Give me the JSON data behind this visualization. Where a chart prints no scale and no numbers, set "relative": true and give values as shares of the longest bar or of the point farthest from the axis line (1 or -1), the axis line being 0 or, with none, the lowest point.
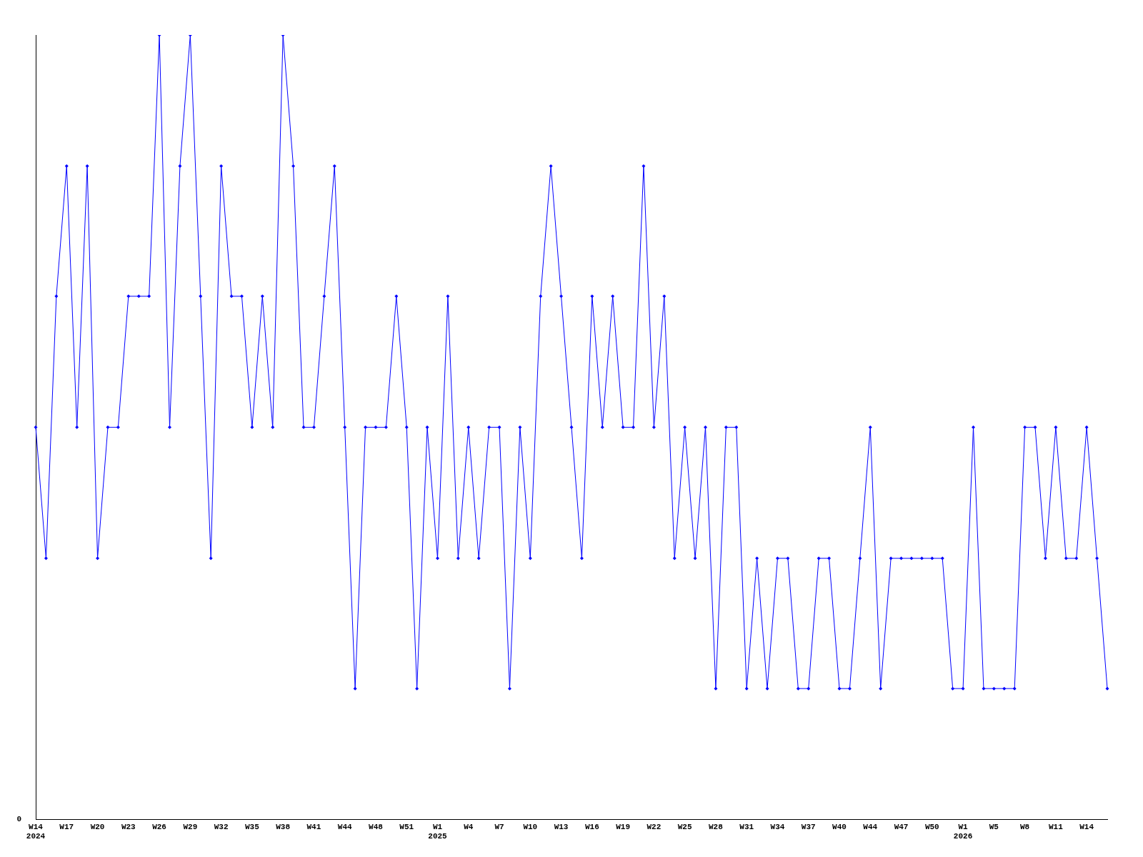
{
  "chart_data": {
    "type": "line",
    "relative": true,
    "color": "#0000ff",
    "marker": "diamond",
    "grid": false,
    "legend": false,
    "annotations": [
      "0"
    ],
    "categories": [
      "W14\n2024",
      null,
      null,
      "W17",
      null,
      null,
      "W20",
      null,
      null,
      "W23",
      null,
      null,
      "W26",
      null,
      null,
      "W29",
      null,
      null,
      "W32",
      null,
      null,
      "W35",
      null,
      null,
      "W38",
      null,
      null,
      "W41",
      null,
      null,
      "W44",
      null,
      null,
      "W48",
      null,
      null,
      "W51",
      null,
      null,
      "W1\n2025",
      null,
      null,
      "W4",
      null,
      null,
      "W7",
      null,
      null,
      "W10",
      null,
      null,
      "W13",
      null,
      null,
      "W16",
      null,
      null,
      "W19",
      null,
      null,
      "W22",
      null,
      null,
      "W25",
      null,
      null,
      "W28",
      null,
      null,
      "W31",
      null,
      null,
      "W34",
      null,
      null,
      "W37",
      null,
      null,
      "W40",
      null,
      null,
      "W44",
      null,
      null,
      "W47",
      null,
      null,
      "W50",
      null,
      null,
      "W1\n2026",
      null,
      null,
      "W5",
      null,
      null,
      "W8",
      null,
      null,
      "W11",
      null,
      null,
      "W14",
      null,
      null
    ],
    "values": [
      0.5,
      0.333,
      0.667,
      0.833,
      0.5,
      0.833,
      0.333,
      0.5,
      0.5,
      0.667,
      0.667,
      0.667,
      1,
      0.5,
      0.833,
      1,
      0.667,
      0.333,
      0.833,
      0.667,
      0.667,
      0.5,
      0.667,
      0.5,
      1,
      0.833,
      0.5,
      0.5,
      0.667,
      0.833,
      0.5,
      0.167,
      0.5,
      0.5,
      0.5,
      0.667,
      0.5,
      0.167,
      0.5,
      0.333,
      0.667,
      0.333,
      0.5,
      0.333,
      0.5,
      0.5,
      0.167,
      0.5,
      0.333,
      0.667,
      0.833,
      0.667,
      0.5,
      0.333,
      0.667,
      0.5,
      0.667,
      0.5,
      0.5,
      0.833,
      0.5,
      0.667,
      0.333,
      0.5,
      0.333,
      0.5,
      0.167,
      0.5,
      0.5,
      0.167,
      0.333,
      0.167,
      0.333,
      0.333,
      0.167,
      0.167,
      0.333,
      0.333,
      0.167,
      0.167,
      0.333,
      0.5,
      0.167,
      0.333,
      0.333,
      0.333,
      0.333,
      0.333,
      0.333,
      0.167,
      0.167,
      0.5,
      0.167,
      0.167,
      0.167,
      0.167,
      0.5,
      0.5,
      0.333,
      0.5,
      0.333,
      0.333,
      0.5,
      0.333,
      0.167
    ]
  }
}
